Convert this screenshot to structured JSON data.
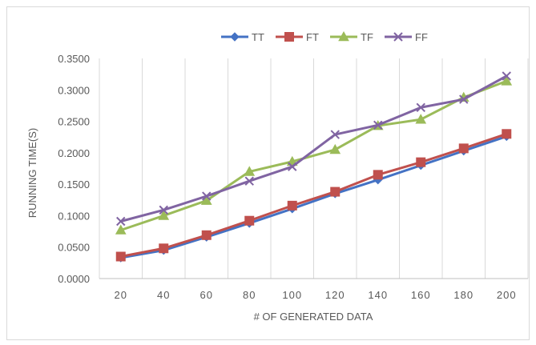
{
  "chart_data": {
    "type": "line",
    "title": "",
    "xlabel": "# OF GENERATED DATA",
    "ylabel": "RUNNING TIME(S)",
    "categories": [
      "20",
      "40",
      "60",
      "80",
      "100",
      "120",
      "140",
      "160",
      "180",
      "200"
    ],
    "ylim": [
      0,
      0.35
    ],
    "yticks": [
      "0.0000",
      "0.0500",
      "0.1000",
      "0.1500",
      "0.2000",
      "0.2500",
      "0.3000",
      "0.3500"
    ],
    "grid": "vertical",
    "legend_position": "top",
    "series": [
      {
        "name": "TT",
        "color": "#4472C4",
        "marker": "diamond",
        "values": [
          0.033,
          0.045,
          0.066,
          0.088,
          0.111,
          0.135,
          0.157,
          0.18,
          0.203,
          0.226
        ]
      },
      {
        "name": "FT",
        "color": "#C0504D",
        "marker": "square",
        "values": [
          0.035,
          0.048,
          0.069,
          0.092,
          0.116,
          0.138,
          0.165,
          0.185,
          0.207,
          0.23
        ]
      },
      {
        "name": "TF",
        "color": "#9BBB59",
        "marker": "triangle",
        "values": [
          0.077,
          0.1,
          0.124,
          0.17,
          0.186,
          0.205,
          0.243,
          0.253,
          0.288,
          0.314
        ]
      },
      {
        "name": "FF",
        "color": "#8064A2",
        "marker": "x",
        "values": [
          0.091,
          0.109,
          0.131,
          0.155,
          0.178,
          0.229,
          0.244,
          0.272,
          0.285,
          0.322
        ]
      }
    ]
  }
}
